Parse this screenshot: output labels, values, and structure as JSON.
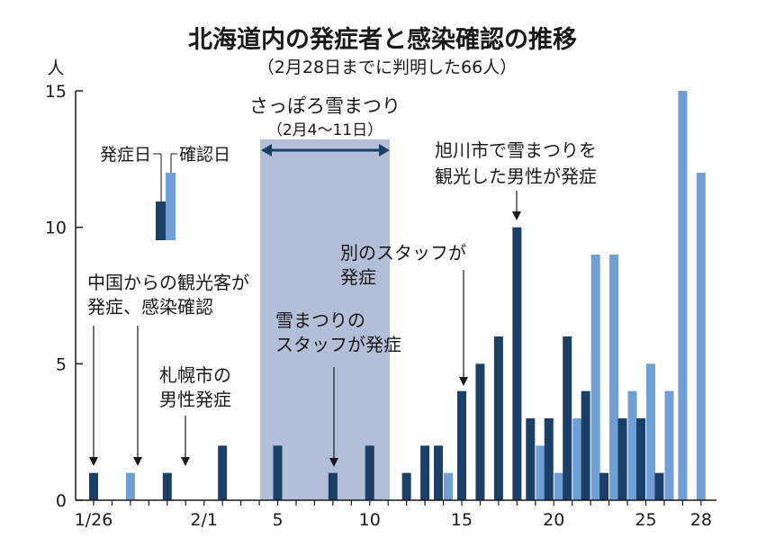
{
  "chart_data": {
    "type": "bar",
    "title": "北海道内の発症者と感染確認の推移",
    "subtitle": "（2月28日までに判明した66人）",
    "ylabel": "人",
    "ylim": [
      0,
      15
    ],
    "y_ticks": [
      0,
      5,
      10,
      15
    ],
    "x_tick_labels": [
      "1/26",
      "2/1",
      "5",
      "10",
      "15",
      "20",
      "25",
      "28"
    ],
    "dates": [
      "1/26",
      "1/27",
      "1/28",
      "1/29",
      "1/30",
      "1/31",
      "2/1",
      "2/2",
      "2/3",
      "2/4",
      "2/5",
      "2/6",
      "2/7",
      "2/8",
      "2/9",
      "2/10",
      "2/11",
      "2/12",
      "2/13",
      "2/14",
      "2/15",
      "2/16",
      "2/17",
      "2/18",
      "2/19",
      "2/20",
      "2/21",
      "2/22",
      "2/23",
      "2/24",
      "2/25",
      "2/26",
      "2/27",
      "2/28"
    ],
    "series": [
      {
        "name": "発症日",
        "color": "#1b3f66",
        "values": [
          1,
          0,
          0,
          0,
          1,
          0,
          0,
          2,
          0,
          0,
          2,
          0,
          0,
          1,
          0,
          2,
          0,
          1,
          2,
          2,
          4,
          5,
          6,
          10,
          3,
          3,
          6,
          4,
          1,
          3,
          3,
          1,
          0,
          0
        ]
      },
      {
        "name": "確認日",
        "color": "#6f9fd4",
        "values": [
          0,
          0,
          1,
          0,
          0,
          0,
          0,
          0,
          0,
          0,
          0,
          0,
          0,
          0,
          0,
          0,
          0,
          0,
          0,
          1,
          0,
          0,
          0,
          0,
          2,
          1,
          3,
          9,
          9,
          4,
          5,
          4,
          15,
          12
        ]
      }
    ],
    "band": {
      "label": "さっぽろ雪まつり",
      "sublabel": "（2月4～11日）",
      "color": "#b3bfd9"
    },
    "annotations": [
      {
        "lines": [
          "中国からの観光客が",
          "発症、感染確認"
        ]
      },
      {
        "lines": [
          "札幌市の",
          "男性発症"
        ]
      },
      {
        "lines": [
          "雪まつりの",
          "スタッフが発症"
        ]
      },
      {
        "lines": [
          "別のスタッフが",
          "発症"
        ]
      },
      {
        "lines": [
          "旭川市で雪まつりを",
          "観光した男性が発症"
        ]
      }
    ],
    "grid": false,
    "legend_position": "top-left"
  }
}
